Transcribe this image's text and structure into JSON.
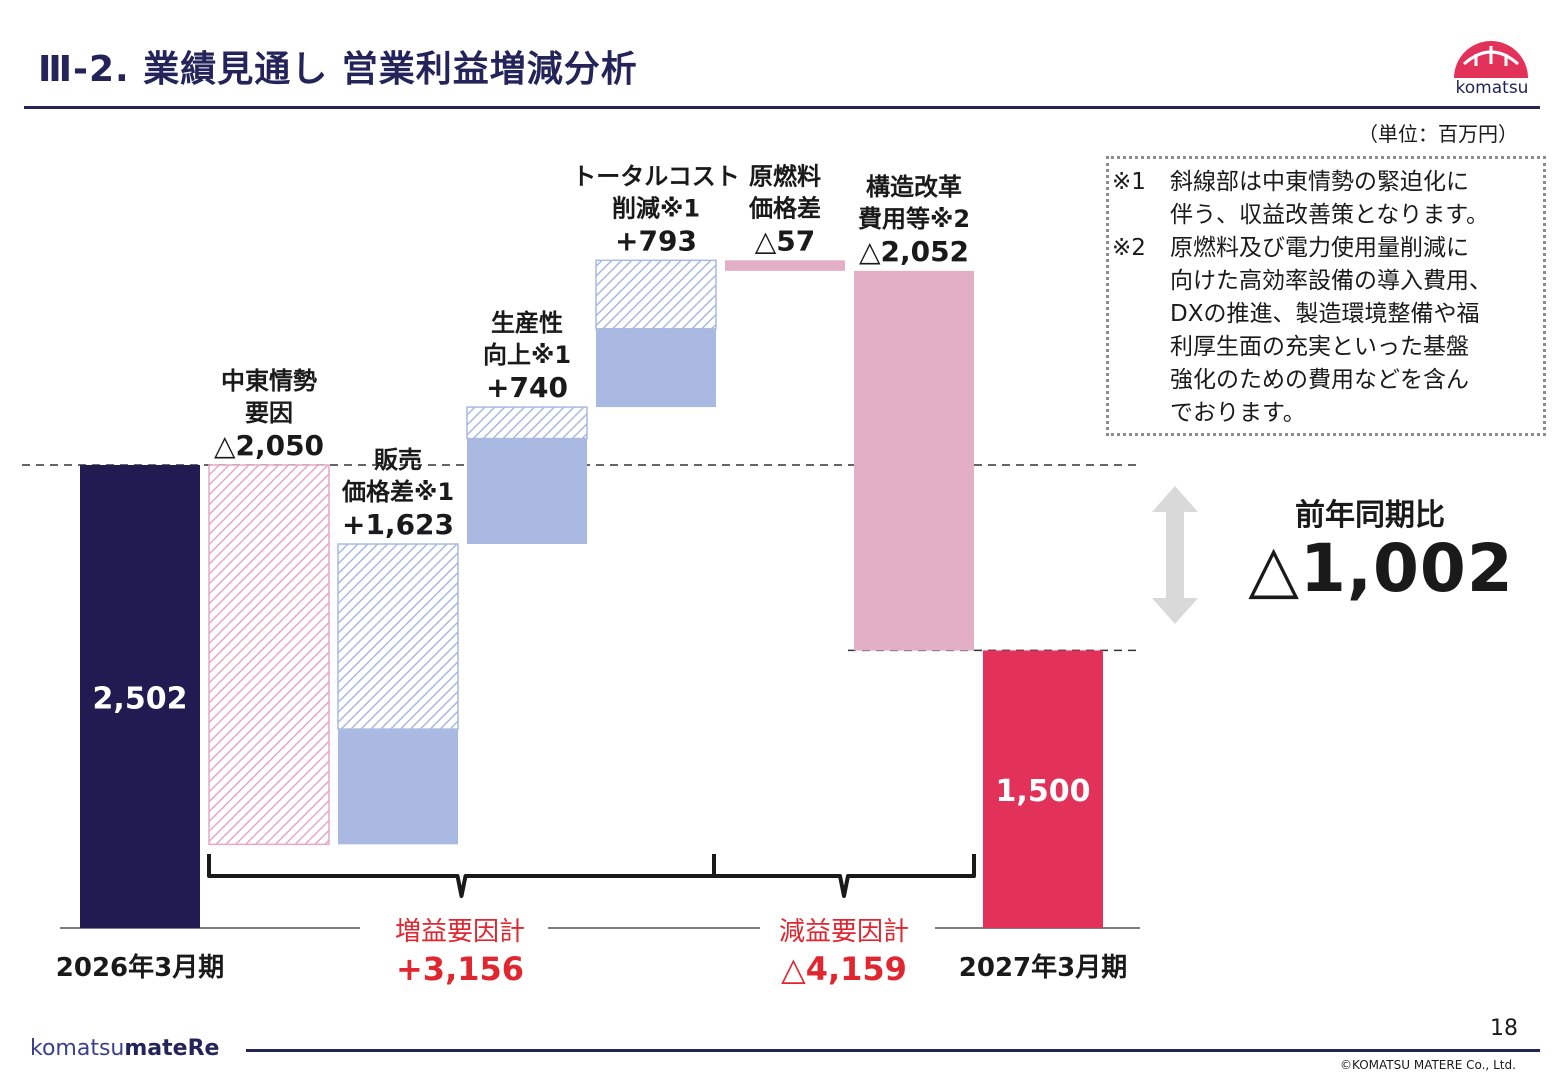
{
  "header": {
    "title": "Ⅲ-2. 業績見通し  営業利益増減分析",
    "logo_text": "komatsu"
  },
  "unit_label": "（単位：百万円）",
  "notes": [
    {
      "mark": "※1",
      "lines": [
        "斜線部は中東情勢の緊迫化に",
        "伴う、収益改善策となります。"
      ]
    },
    {
      "mark": "※2",
      "lines": [
        "原燃料及び電力使用量削減に",
        "向けた高効率設備の導入費用、",
        "DXの推進、製造環境整備や福",
        "利厚生面の充実といった基盤",
        "強化のための費用などを含ん",
        "でおります。"
      ]
    }
  ],
  "yoy": {
    "label": "前年同期比",
    "value": "△1,002"
  },
  "chart_data": {
    "type": "bar",
    "subtype": "waterfall",
    "unit": "百万円",
    "bars": [
      {
        "key": "start",
        "label_lines": [],
        "value_label": "2,502",
        "value": 2502,
        "kind": "total",
        "axis_label": "2026年3月期",
        "color": "#211b52"
      },
      {
        "key": "mideast",
        "label_lines": [
          "中東情勢",
          "要因"
        ],
        "value_label": "△2,050",
        "value": -2050,
        "kind": "decrease-hatched",
        "color": "#e6a9c2"
      },
      {
        "key": "price",
        "label_lines": [
          "販売",
          "価格差※1"
        ],
        "value_label": "+1,623",
        "value": 1623,
        "hatched_part": 1000,
        "kind": "increase",
        "color": "#a9b9e2"
      },
      {
        "key": "productivity",
        "label_lines": [
          "生産性",
          "向上※1"
        ],
        "value_label": "+740",
        "value": 740,
        "hatched_part": 170,
        "kind": "increase",
        "color": "#a9b9e2"
      },
      {
        "key": "costcut",
        "label_lines": [
          "トータルコスト",
          "削減※1"
        ],
        "value_label": "+793",
        "value": 793,
        "hatched_part": 370,
        "kind": "increase",
        "color": "#a9b9e2"
      },
      {
        "key": "fuel",
        "label_lines": [
          "原燃料",
          "価格差"
        ],
        "value_label": "△57",
        "value": -57,
        "kind": "decrease",
        "color": "#e2afc6"
      },
      {
        "key": "restructure",
        "label_lines": [
          "構造改革",
          "費用等※2"
        ],
        "value_label": "△2,052",
        "value": -2052,
        "kind": "decrease",
        "color": "#e2afc6"
      },
      {
        "key": "end",
        "label_lines": [],
        "value_label": "1,500",
        "value": 1500,
        "kind": "total",
        "axis_label": "2027年3月期",
        "color": "#e3325a"
      }
    ],
    "groups": [
      {
        "label": "増益要因計",
        "value": "+3,156"
      },
      {
        "label": "減益要因計",
        "value": "△4,159"
      }
    ]
  },
  "footer": {
    "logo_left": "komatsu",
    "logo_right": "mateRe",
    "page_number": "18",
    "copyright": "©KOMATSU MATERE Co., Ltd."
  }
}
